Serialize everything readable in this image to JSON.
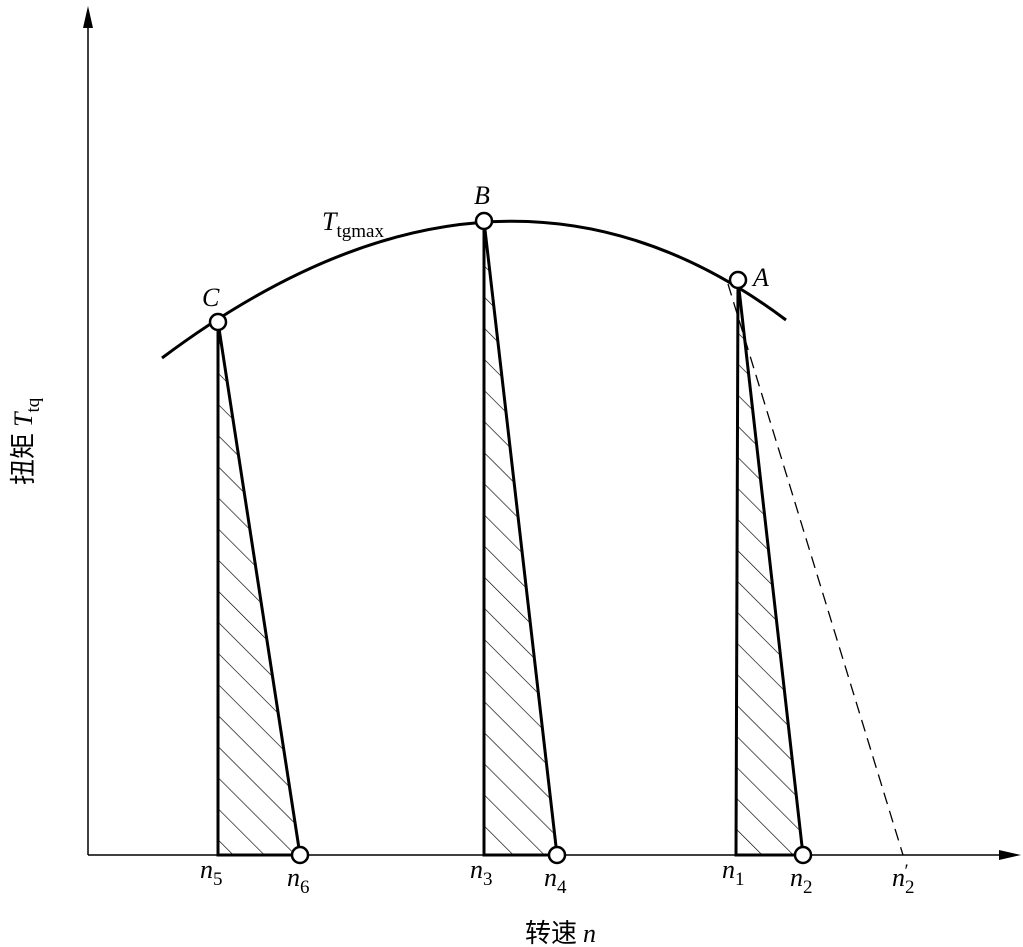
{
  "axes": {
    "y_label": {
      "text": "扭矩",
      "symbol": "T",
      "sub": "tq"
    },
    "x_label": {
      "text": "转速",
      "symbol": "n"
    }
  },
  "curve_label": {
    "symbol": "T",
    "sub": "tgmax"
  },
  "points": [
    {
      "label": "C"
    },
    {
      "label": "B"
    },
    {
      "label": "A"
    }
  ],
  "ticks": [
    {
      "symbol": "n",
      "sub": "5"
    },
    {
      "symbol": "n",
      "sub": "6"
    },
    {
      "symbol": "n",
      "sub": "3"
    },
    {
      "symbol": "n",
      "sub": "4"
    },
    {
      "symbol": "n",
      "sub": "1"
    },
    {
      "symbol": "n",
      "sub": "2"
    },
    {
      "symbol": "n",
      "sub": "2",
      "sup": "′"
    }
  ]
}
